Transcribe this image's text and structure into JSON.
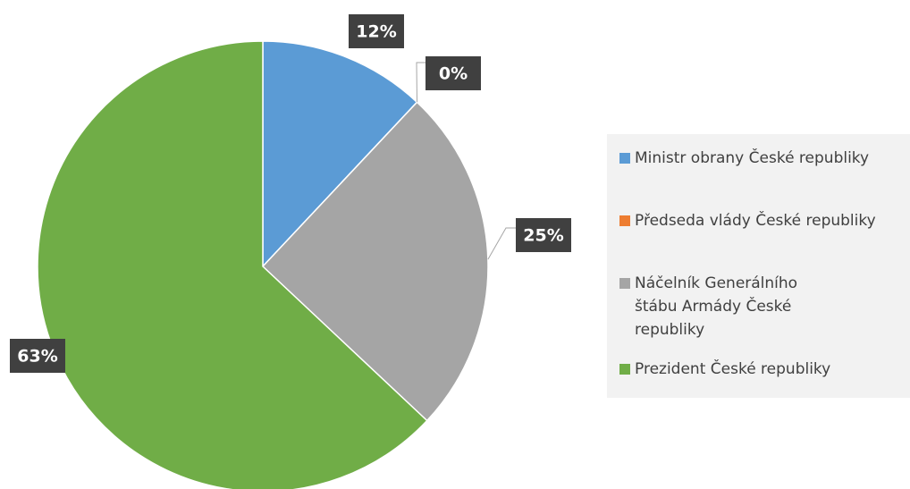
{
  "chart_data": {
    "type": "pie",
    "categories": [
      "Ministr obrany České republiky",
      "Předseda vlády České republiky",
      "Náčelník Generálního štábu Armády České republiky",
      "Prezident České republiky"
    ],
    "values": [
      12,
      0,
      25,
      63
    ],
    "value_labels": [
      "12%",
      "0%",
      "25%",
      "63%"
    ],
    "colors": [
      "#5b9bd5",
      "#ed7d31",
      "#a5a5a5",
      "#70ad47"
    ],
    "legend": "right"
  }
}
